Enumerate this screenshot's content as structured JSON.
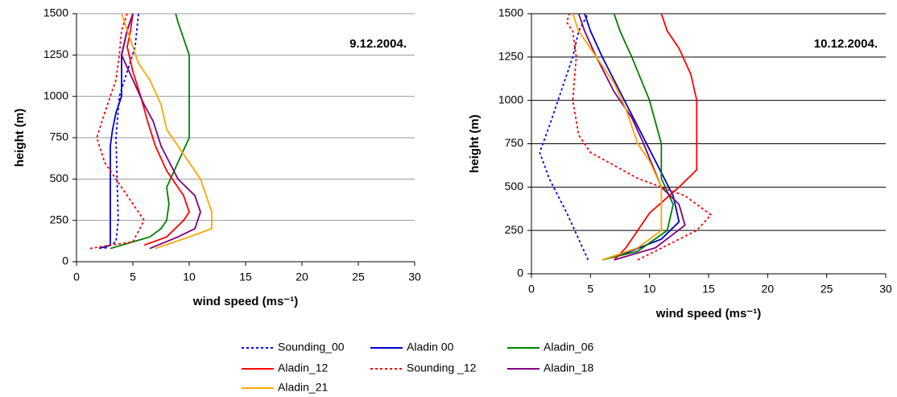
{
  "chart_data": [
    {
      "type": "line",
      "annotation": "9.12.2004.",
      "xlabel": "wind speed (ms⁻¹)",
      "ylabel": "height (m)",
      "xlim": [
        0,
        30
      ],
      "xticks": [
        0,
        5,
        10,
        15,
        20,
        25,
        30
      ],
      "ylim": [
        0,
        1500
      ],
      "yticks": [
        0,
        250,
        500,
        750,
        1000,
        1250,
        1500
      ],
      "grid": true,
      "grid_color": "#999999",
      "series": [
        {
          "name": "Sounding_00",
          "color": "#0000ff",
          "dash": "dotted",
          "x": [
            2.5,
            3.5,
            3.7,
            3.6,
            3.5,
            3.8,
            4.5,
            5.2,
            5.5
          ],
          "values": [
            80,
            120,
            250,
            500,
            750,
            1000,
            1150,
            1300,
            1500
          ]
        },
        {
          "name": "Aladin 00",
          "color": "#0000cc",
          "x": [
            2,
            3,
            3,
            3,
            3,
            3.2,
            3.5,
            4,
            4,
            4,
            4.5,
            5
          ],
          "values": [
            80,
            100,
            250,
            500,
            700,
            800,
            900,
            1000,
            1100,
            1250,
            1400,
            1500
          ]
        },
        {
          "name": "Aladin_06",
          "color": "#008000",
          "x": [
            3,
            5,
            6.5,
            7.5,
            8,
            8.2,
            8,
            9,
            10,
            10,
            10,
            9.5,
            9,
            8.8
          ],
          "values": [
            80,
            120,
            150,
            200,
            250,
            350,
            450,
            600,
            750,
            1000,
            1250,
            1350,
            1450,
            1500
          ]
        },
        {
          "name": "Aladin_12",
          "color": "#ff0000",
          "x": [
            6,
            8,
            9.5,
            10,
            9.5,
            8,
            7,
            6.3,
            5.7,
            5,
            4.5,
            4.8,
            5
          ],
          "values": [
            100,
            150,
            250,
            300,
            400,
            550,
            700,
            850,
            1000,
            1150,
            1300,
            1400,
            1500
          ]
        },
        {
          "name": "Sounding _12",
          "color": "#ff0000",
          "dash": "dotted",
          "x": [
            1.2,
            3,
            5,
            6,
            5,
            4,
            2.5,
            1.8,
            2.5,
            3.5,
            3.8,
            4,
            4.5
          ],
          "values": [
            80,
            100,
            120,
            250,
            350,
            450,
            600,
            750,
            900,
            1100,
            1250,
            1400,
            1500
          ]
        },
        {
          "name": "Aladin_18",
          "color": "#800080",
          "x": [
            6.5,
            9,
            10.5,
            11,
            10.5,
            9,
            7.5,
            6.8,
            6,
            5,
            4,
            4.5,
            5
          ],
          "values": [
            80,
            150,
            200,
            300,
            400,
            500,
            700,
            850,
            950,
            1100,
            1250,
            1400,
            1500
          ]
        },
        {
          "name": "Aladin_21",
          "color": "#ffa500",
          "x": [
            7,
            10,
            12,
            12,
            11,
            9.5,
            8,
            7.5,
            6.5,
            5.5,
            5,
            4.5,
            4
          ],
          "values": [
            80,
            150,
            200,
            300,
            500,
            650,
            800,
            950,
            1100,
            1200,
            1300,
            1400,
            1500
          ]
        }
      ]
    },
    {
      "type": "line",
      "annotation": "10.12.2004.",
      "xlabel": "wind speed (ms⁻¹)",
      "ylabel": "height (m)",
      "xlim": [
        0,
        30
      ],
      "xticks": [
        0,
        5,
        10,
        15,
        20,
        25,
        30
      ],
      "ylim": [
        0,
        1500
      ],
      "yticks": [
        0,
        250,
        500,
        750,
        1000,
        1250,
        1500
      ],
      "grid": true,
      "grid_color": "#000000",
      "series": [
        {
          "name": "Sounding_00",
          "color": "#0000ff",
          "dash": "dotted",
          "x": [
            4.8,
            4,
            3,
            1.5,
            0.7,
            1.5,
            2.5,
            3.5,
            4,
            4.8
          ],
          "values": [
            80,
            200,
            350,
            550,
            700,
            850,
            1050,
            1250,
            1400,
            1500
          ]
        },
        {
          "name": "Aladin 00",
          "color": "#0000cc",
          "x": [
            6,
            8,
            11,
            12.5,
            12,
            10.5,
            9,
            7.5,
            6,
            5,
            4.5
          ],
          "values": [
            80,
            120,
            200,
            300,
            450,
            650,
            850,
            1050,
            1250,
            1400,
            1500
          ]
        },
        {
          "name": "Aladin_06",
          "color": "#008000",
          "x": [
            6,
            9,
            11.5,
            12,
            11,
            11,
            10,
            8.5,
            7.5,
            7
          ],
          "values": [
            80,
            130,
            250,
            400,
            550,
            750,
            1000,
            1250,
            1400,
            1500
          ]
        },
        {
          "name": "Aladin_12",
          "color": "#ff0000",
          "x": [
            7,
            8,
            9,
            10,
            12.5,
            14,
            14,
            14,
            13.5,
            12.5,
            11.5,
            11
          ],
          "values": [
            80,
            150,
            250,
            350,
            500,
            600,
            750,
            1000,
            1150,
            1300,
            1400,
            1500
          ]
        },
        {
          "name": "Sounding _12",
          "color": "#ff0000",
          "dash": "dotted",
          "x": [
            9,
            14,
            15.2,
            13,
            9,
            5,
            4,
            3.5,
            3.8,
            3.5,
            3,
            3.2
          ],
          "values": [
            80,
            250,
            340,
            450,
            550,
            700,
            800,
            1000,
            1250,
            1400,
            1450,
            1500
          ]
        },
        {
          "name": "Aladin_18",
          "color": "#800080",
          "x": [
            7,
            10.5,
            13,
            12.5,
            11,
            9.5,
            8.5,
            7,
            5.5,
            4.5,
            4
          ],
          "values": [
            80,
            150,
            280,
            400,
            500,
            750,
            900,
            1050,
            1250,
            1400,
            1500
          ]
        },
        {
          "name": "Aladin_21",
          "color": "#ffa500",
          "x": [
            6,
            9,
            11,
            11,
            11,
            10,
            9,
            8,
            7,
            6,
            5,
            4,
            3.5
          ],
          "values": [
            80,
            150,
            250,
            400,
            500,
            650,
            750,
            950,
            1100,
            1200,
            1300,
            1400,
            1500
          ]
        }
      ]
    }
  ]
}
